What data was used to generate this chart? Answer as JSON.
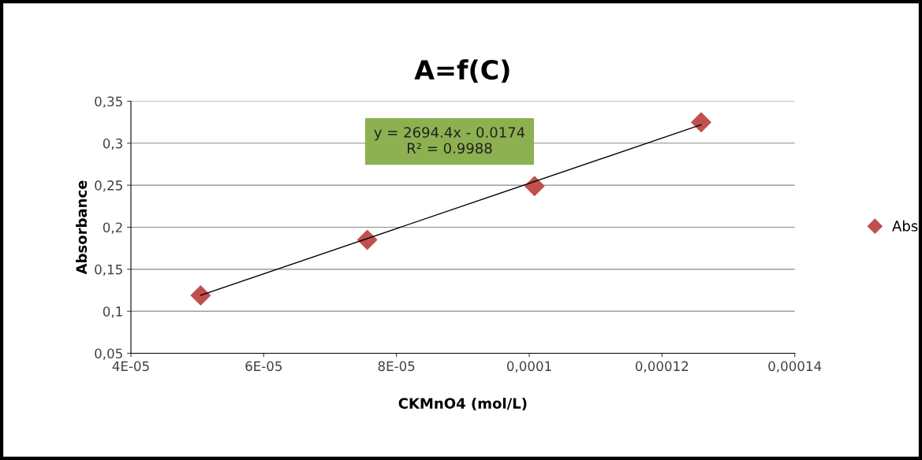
{
  "chart_data": {
    "type": "scatter",
    "title": "A=f(C)",
    "xlabel": "CKMnO4 (mol/L)",
    "ylabel": "Absorbance",
    "annotations": [
      "y = 2694.4x - 0.0174\nR² = 0.9988"
    ],
    "series": [
      {
        "name": "Abs",
        "color": "#c0504d",
        "marker": "diamond",
        "x": [
          5.05e-05,
          7.56e-05,
          0.0001008,
          0.0001259
        ],
        "values": [
          0.119,
          0.185,
          0.249,
          0.325
        ]
      },
      {
        "type": "line",
        "color": "#000000",
        "marker": "none",
        "x": [
          5.05e-05,
          0.0001259
        ],
        "values": [
          0.119,
          0.322
        ]
      }
    ],
    "xlim": [
      4e-05,
      0.00014
    ],
    "xticks": [
      {
        "value": 4e-05,
        "label": "4E-05"
      },
      {
        "value": 6e-05,
        "label": "6E-05"
      },
      {
        "value": 8e-05,
        "label": "8E-05"
      },
      {
        "value": 0.0001,
        "label": "0,0001"
      },
      {
        "value": 0.00012,
        "label": "0,00012"
      },
      {
        "value": 0.00014,
        "label": "0,00014"
      }
    ],
    "ylim": [
      0.05,
      0.35
    ],
    "yticks": [
      {
        "value": 0.05,
        "label": "0,05"
      },
      {
        "value": 0.1,
        "label": "0,1"
      },
      {
        "value": 0.15,
        "label": "0,15"
      },
      {
        "value": 0.2,
        "label": "0,2"
      },
      {
        "value": 0.25,
        "label": "0,25"
      },
      {
        "value": 0.3,
        "label": "0,3"
      },
      {
        "value": 0.35,
        "label": "0,35"
      }
    ],
    "grid": "y",
    "legend": "right"
  }
}
